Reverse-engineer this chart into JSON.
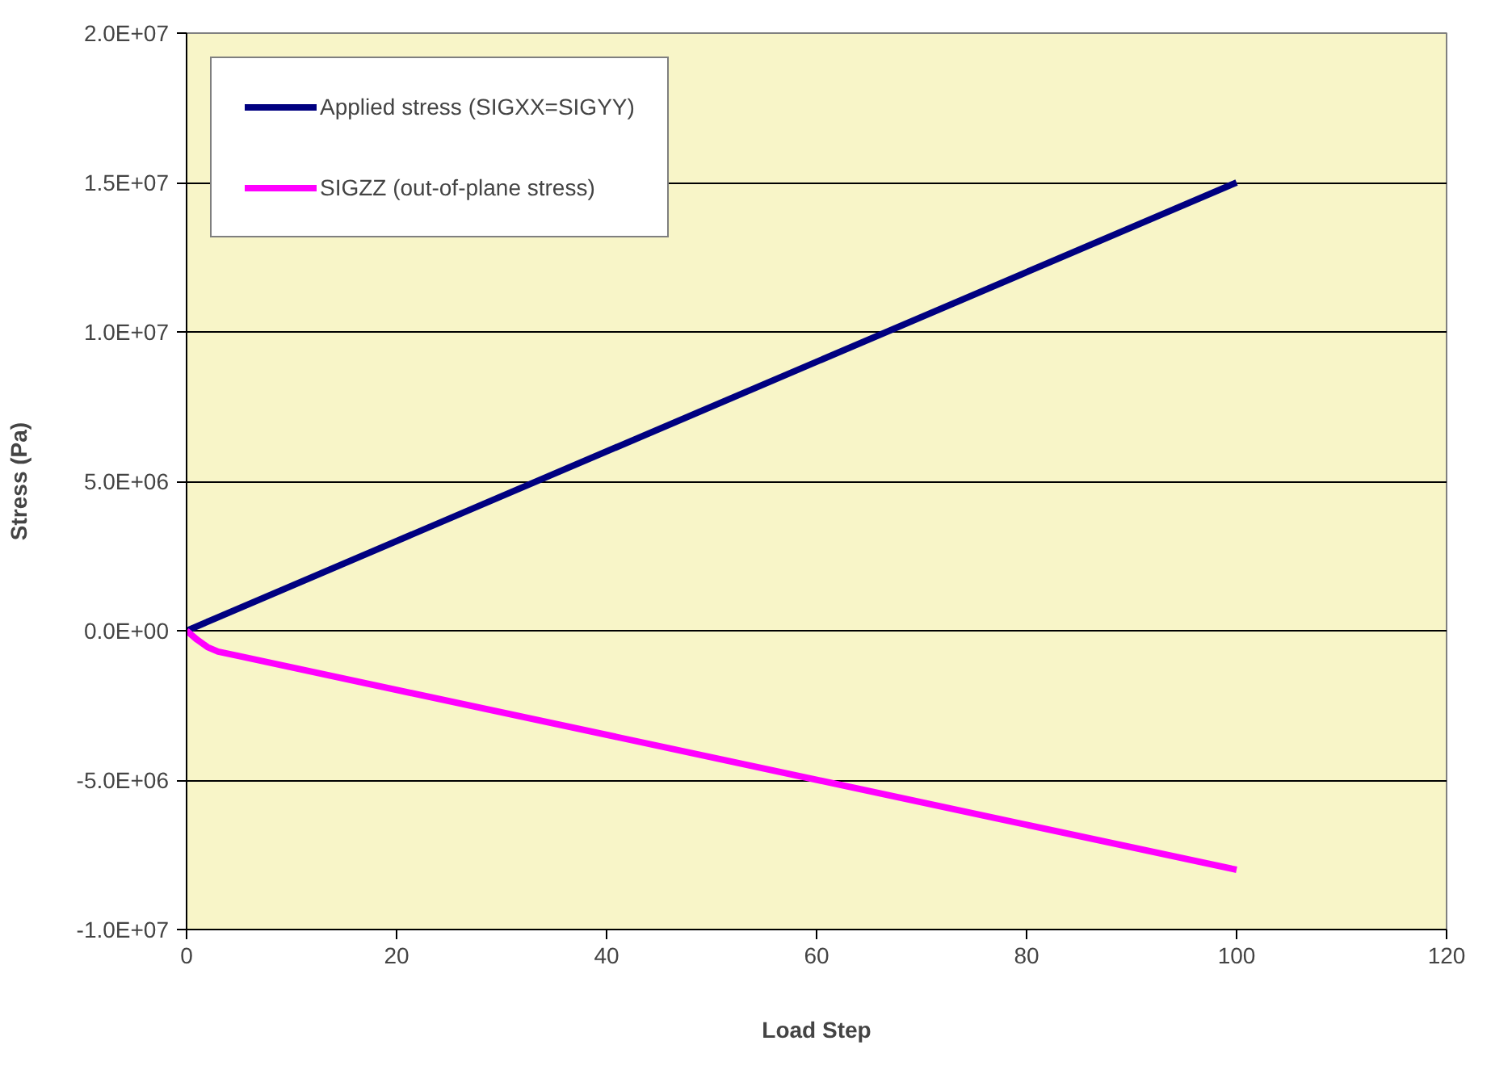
{
  "chart_data": {
    "type": "line",
    "xlabel": "Load Step",
    "ylabel": "Stress (Pa)",
    "xlim": [
      0,
      120
    ],
    "xticks": [
      0,
      20,
      40,
      60,
      80,
      100,
      120
    ],
    "ylim": [
      -10000000,
      20000000
    ],
    "yticks": [
      {
        "value": -10000000,
        "label": "-1.0E+07"
      },
      {
        "value": -5000000,
        "label": "-5.0E+06"
      },
      {
        "value": 0,
        "label": "0.0E+00"
      },
      {
        "value": 5000000,
        "label": "5.0E+06"
      },
      {
        "value": 10000000,
        "label": "1.0E+07"
      },
      {
        "value": 15000000,
        "label": "1.5E+07"
      },
      {
        "value": 20000000,
        "label": "2.0E+07"
      }
    ],
    "grid": "y",
    "legend": "top left",
    "marker": "none",
    "line_style": "solid",
    "series": [
      {
        "name": "Applied stress (SIGXX=SIGYY)",
        "color": "#000080",
        "x": [
          0,
          100
        ],
        "values": [
          0,
          15000000
        ]
      },
      {
        "name": "SIGZZ (out-of-plane stress)",
        "color": "#ff00ff",
        "x": [
          0,
          1,
          2,
          3,
          5,
          100
        ],
        "values": [
          0,
          -300000,
          -550000,
          -700000,
          -850000,
          -8000000
        ]
      }
    ]
  }
}
